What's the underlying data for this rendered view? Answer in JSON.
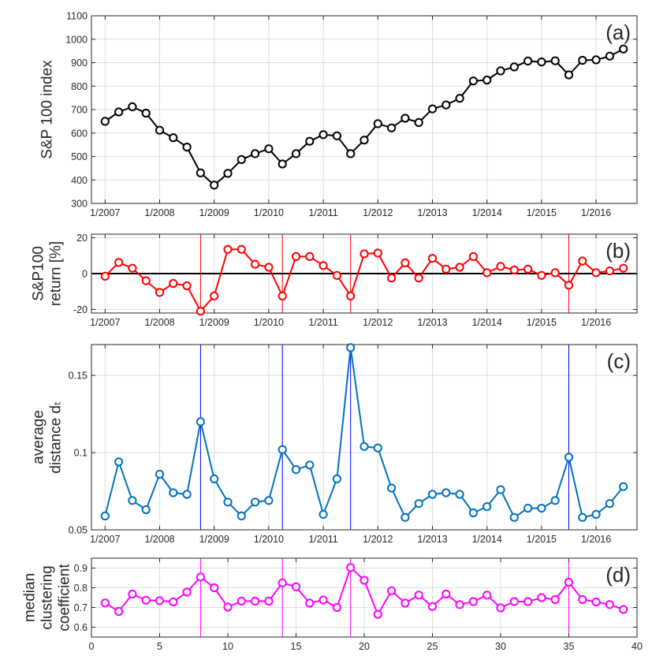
{
  "chart_data": [
    {
      "id": "a",
      "type": "line",
      "panel_label": "(a)",
      "ylabel": [
        "S&P 100 index"
      ],
      "ylim": [
        300,
        1100
      ],
      "yticks": [
        "300",
        "400",
        "500",
        "600",
        "700",
        "800",
        "900",
        "1000",
        "1100"
      ],
      "xlim": [
        0,
        40
      ],
      "xticks": [
        1,
        5,
        9,
        13,
        17,
        21,
        25,
        29,
        33,
        37
      ],
      "xticklabels": [
        "1/2007",
        "1/2008",
        "1/2009",
        "1/2010",
        "1/2011",
        "1/2012",
        "1/2013",
        "1/2014",
        "1/2015",
        "1/2016"
      ],
      "grid": true,
      "color": "#000000",
      "series": [
        {
          "name": "S&P 100 index",
          "x_start": 1,
          "values": [
            650,
            690,
            712,
            685,
            612,
            580,
            540,
            430,
            378,
            428,
            487,
            512,
            533,
            468,
            512,
            565,
            593,
            588,
            512,
            570,
            640,
            622,
            663,
            645,
            703,
            720,
            748,
            822,
            826,
            865,
            882,
            907,
            903,
            908,
            848,
            910,
            912,
            928,
            958
          ]
        }
      ]
    },
    {
      "id": "b",
      "type": "line",
      "panel_label": "(b)",
      "ylabel": [
        "S&P100",
        "return [%]"
      ],
      "ylim": [
        -22,
        22
      ],
      "yticks": [
        "-20",
        "0",
        "20"
      ],
      "ytick_values": [
        -20,
        0,
        20
      ],
      "xlim": [
        0,
        40
      ],
      "xticks": [
        1,
        5,
        9,
        13,
        17,
        21,
        25,
        29,
        33,
        37
      ],
      "xticklabels": [
        "1/2007",
        "1/2008",
        "1/2009",
        "1/2010",
        "1/2011",
        "1/2012",
        "1/2013",
        "1/2014",
        "1/2015",
        "1/2016"
      ],
      "grid": true,
      "zero_line": true,
      "color": "#ff0000",
      "marker_lines": [
        8,
        14,
        19,
        35
      ],
      "marker_line_color": "#ff0000",
      "series": [
        {
          "name": "S&P100 return",
          "x_start": 1,
          "values": [
            -1.5,
            6.2,
            3,
            -4,
            -10.5,
            -5.5,
            -6.8,
            -21,
            -12.5,
            13.5,
            13.5,
            5.2,
            3.5,
            -12.5,
            9.5,
            9.5,
            4.5,
            -1,
            -12.5,
            11,
            11.5,
            -2.5,
            6,
            -2.5,
            8.5,
            2.5,
            3.5,
            9.5,
            0.5,
            4,
            2,
            2.5,
            -1,
            0.5,
            -6.5,
            7,
            0.5,
            1.5,
            3
          ]
        }
      ]
    },
    {
      "id": "c",
      "type": "line",
      "panel_label": "(c)",
      "ylabel": [
        "average",
        "distance dₜ"
      ],
      "ylim": [
        0.05,
        0.17
      ],
      "yticks": [
        "0.05",
        "0.1",
        "0.15"
      ],
      "ytick_values": [
        0.05,
        0.1,
        0.15
      ],
      "xlim": [
        0,
        40
      ],
      "xticks": [
        1,
        5,
        9,
        13,
        17,
        21,
        25,
        29,
        33,
        37
      ],
      "xticklabels": [
        "1/2007",
        "1/2008",
        "1/2009",
        "1/2010",
        "1/2011",
        "1/2012",
        "1/2013",
        "1/2014",
        "1/2015",
        "1/2016"
      ],
      "grid": true,
      "color": "#0072bd",
      "marker_lines": [
        8,
        14,
        19,
        35
      ],
      "marker_line_color": "#0000ff",
      "series": [
        {
          "name": "average distance",
          "x_start": 1,
          "values": [
            0.059,
            0.094,
            0.069,
            0.063,
            0.086,
            0.074,
            0.073,
            0.12,
            0.083,
            0.068,
            0.059,
            0.068,
            0.069,
            0.102,
            0.089,
            0.092,
            0.06,
            0.083,
            0.168,
            0.104,
            0.103,
            0.077,
            0.058,
            0.067,
            0.073,
            0.074,
            0.073,
            0.061,
            0.065,
            0.076,
            0.058,
            0.064,
            0.064,
            0.069,
            0.097,
            0.058,
            0.06,
            0.067,
            0.078
          ]
        }
      ]
    },
    {
      "id": "d",
      "type": "line",
      "panel_label": "(d)",
      "ylabel": [
        "median",
        "clustering",
        "coefficient"
      ],
      "ylim": [
        0.55,
        0.95
      ],
      "yticks": [
        "0.6",
        "0.7",
        "0.8",
        "0.9"
      ],
      "ytick_values": [
        0.6,
        0.7,
        0.8,
        0.9
      ],
      "xlim": [
        0,
        40
      ],
      "xticks": [
        0,
        5,
        10,
        15,
        20,
        25,
        30,
        35,
        40
      ],
      "xticklabels": [
        "0",
        "5",
        "10",
        "15",
        "20",
        "25",
        "30",
        "35",
        "40"
      ],
      "grid": true,
      "color": "#ff00ff",
      "marker_lines": [
        8,
        14,
        19,
        35
      ],
      "marker_line_color": "#ff00ff",
      "series": [
        {
          "name": "median clustering coefficient",
          "x_start": 1,
          "values": [
            0.723,
            0.68,
            0.768,
            0.737,
            0.735,
            0.728,
            0.778,
            0.855,
            0.8,
            0.702,
            0.732,
            0.732,
            0.732,
            0.825,
            0.805,
            0.722,
            0.738,
            0.7,
            0.903,
            0.838,
            0.665,
            0.785,
            0.722,
            0.763,
            0.705,
            0.768,
            0.715,
            0.73,
            0.763,
            0.698,
            0.73,
            0.73,
            0.75,
            0.74,
            0.828,
            0.74,
            0.728,
            0.715,
            0.69
          ]
        }
      ]
    }
  ]
}
